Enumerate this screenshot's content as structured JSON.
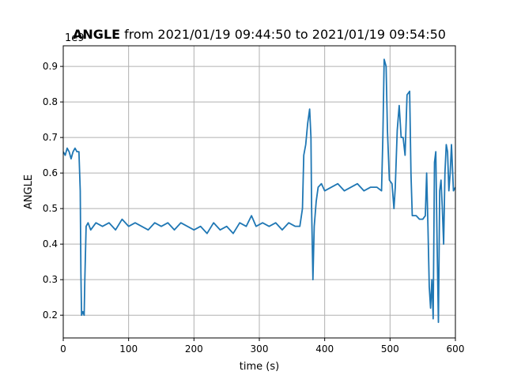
{
  "chart_data": {
    "type": "line",
    "title_bold": "ANGLE",
    "title_rest": "from 2021/01/19 09:44:50 to 2021/01/19 09:54:50",
    "y_offset_label": "1e9",
    "xlabel": "time (s)",
    "ylabel": "ANGLE",
    "xlim": [
      0,
      600
    ],
    "ylim": [
      0.136,
      0.958
    ],
    "xticks": [
      0,
      100,
      200,
      300,
      400,
      500,
      600
    ],
    "yticks": [
      0.2,
      0.3,
      0.4,
      0.5,
      0.6,
      0.7,
      0.8,
      0.9
    ],
    "grid": true,
    "series": [
      {
        "name": "ANGLE",
        "color": "#1f77b4",
        "x": [
          0,
          3,
          6,
          9,
          12,
          15,
          18,
          21,
          24,
          26,
          27,
          28,
          30,
          32,
          33,
          35,
          38,
          42,
          50,
          60,
          70,
          80,
          90,
          100,
          110,
          120,
          130,
          140,
          150,
          160,
          170,
          180,
          190,
          200,
          210,
          220,
          230,
          240,
          250,
          260,
          270,
          280,
          288,
          295,
          305,
          315,
          325,
          335,
          345,
          355,
          362,
          366,
          368,
          371,
          374,
          377,
          379,
          380,
          382,
          384,
          387,
          390,
          395,
          400,
          410,
          420,
          430,
          440,
          450,
          460,
          470,
          480,
          487,
          489,
          491,
          494,
          496,
          499,
          503,
          506,
          508,
          511,
          514,
          517,
          520,
          523,
          526,
          530,
          532,
          534,
          540,
          545,
          550,
          554,
          556,
          558,
          560,
          562,
          564,
          566,
          568,
          570,
          572,
          574,
          576,
          578,
          580,
          582,
          584,
          586,
          588,
          590,
          592,
          594,
          597,
          600
        ],
        "values": [
          0.66,
          0.65,
          0.67,
          0.66,
          0.64,
          0.66,
          0.67,
          0.66,
          0.66,
          0.55,
          0.32,
          0.2,
          0.21,
          0.2,
          0.3,
          0.45,
          0.46,
          0.44,
          0.46,
          0.45,
          0.46,
          0.44,
          0.47,
          0.45,
          0.46,
          0.45,
          0.44,
          0.46,
          0.45,
          0.46,
          0.44,
          0.46,
          0.45,
          0.44,
          0.45,
          0.43,
          0.46,
          0.44,
          0.45,
          0.43,
          0.46,
          0.45,
          0.48,
          0.45,
          0.46,
          0.45,
          0.46,
          0.44,
          0.46,
          0.45,
          0.45,
          0.5,
          0.65,
          0.68,
          0.74,
          0.78,
          0.7,
          0.5,
          0.3,
          0.45,
          0.52,
          0.56,
          0.57,
          0.55,
          0.56,
          0.57,
          0.55,
          0.56,
          0.57,
          0.55,
          0.56,
          0.56,
          0.55,
          0.7,
          0.92,
          0.9,
          0.72,
          0.58,
          0.57,
          0.5,
          0.56,
          0.72,
          0.79,
          0.7,
          0.7,
          0.65,
          0.82,
          0.83,
          0.6,
          0.48,
          0.48,
          0.47,
          0.47,
          0.48,
          0.6,
          0.45,
          0.28,
          0.22,
          0.3,
          0.19,
          0.63,
          0.66,
          0.4,
          0.18,
          0.55,
          0.58,
          0.5,
          0.4,
          0.6,
          0.68,
          0.66,
          0.55,
          0.6,
          0.68,
          0.55,
          0.56
        ]
      }
    ]
  }
}
